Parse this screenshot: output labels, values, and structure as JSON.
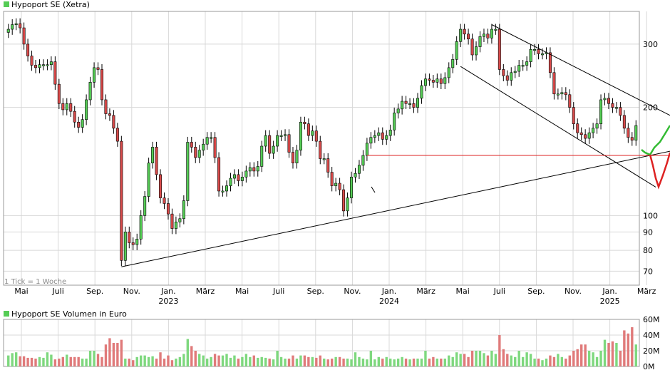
{
  "chart_data": [
    {
      "type": "candlestick",
      "title": "Hypoport SE (Xetra)",
      "legend_color": "#55cc55",
      "note": "1 Tick = 1 Woche",
      "y_scale": "log",
      "ylim": [
        64,
        370
      ],
      "y_ticks": [
        70,
        80,
        90,
        100,
        200,
        300
      ],
      "x_month_labels": [
        "Mai",
        "Juli",
        "Sep.",
        "Nov.",
        "Jan.",
        "März",
        "Mai",
        "Juli",
        "Sep.",
        "Nov.",
        "Jan.",
        "März",
        "Mai",
        "Juli",
        "Sep.",
        "Nov.",
        "Jan.",
        "März"
      ],
      "x_year_labels": [
        "2023",
        "2024",
        "2025"
      ],
      "weekly_close": [
        330,
        340,
        342,
        333,
        300,
        278,
        262,
        258,
        263,
        263,
        263,
        268,
        232,
        205,
        197,
        205,
        195,
        182,
        176,
        185,
        210,
        235,
        258,
        255,
        210,
        192,
        190,
        175,
        161,
        75,
        90,
        84,
        83,
        86,
        100,
        113,
        140,
        155,
        130,
        112,
        108,
        101,
        92,
        96,
        98,
        110,
        160,
        155,
        145,
        152,
        158,
        165,
        165,
        145,
        117,
        117,
        121,
        127,
        130,
        125,
        128,
        133,
        136,
        133,
        137,
        156,
        167,
        149,
        156,
        167,
        167,
        168,
        150,
        140,
        152,
        182,
        180,
        167,
        172,
        161,
        144,
        144,
        132,
        121,
        123,
        118,
        103,
        112,
        128,
        131,
        138,
        147,
        159,
        165,
        167,
        170,
        163,
        167,
        173,
        193,
        198,
        208,
        205,
        205,
        200,
        212,
        230,
        240,
        238,
        235,
        240,
        233,
        242,
        258,
        272,
        305,
        330,
        320,
        310,
        280,
        295,
        315,
        320,
        312,
        330,
        330,
        255,
        245,
        238,
        250,
        252,
        262,
        262,
        268,
        290,
        290,
        282,
        282,
        284,
        250,
        218,
        218,
        220,
        217,
        200,
        180,
        170,
        168,
        164,
        170,
        175,
        180,
        210,
        212,
        205,
        200,
        200,
        190,
        175,
        165,
        162,
        178
      ],
      "volume_unit": "Mio. Euro",
      "volume_title": "Hypoport SE Volumen in Euro",
      "volume_ticks": [
        "0M",
        "20M",
        "40M",
        "60M"
      ],
      "volume_ylim": [
        0,
        60
      ],
      "weekly_volume": [
        14,
        17,
        18,
        13,
        13,
        11,
        11,
        10,
        12,
        11,
        18,
        15,
        9,
        10,
        12,
        15,
        12,
        12,
        12,
        10,
        10,
        20,
        20,
        16,
        12,
        28,
        36,
        30,
        30,
        34,
        10,
        10,
        8,
        12,
        14,
        14,
        12,
        13,
        10,
        18,
        10,
        14,
        8,
        10,
        12,
        16,
        35,
        26,
        20,
        16,
        14,
        10,
        12,
        16,
        14,
        14,
        16,
        11,
        14,
        10,
        12,
        16,
        12,
        14,
        11,
        12,
        11,
        10,
        9,
        20,
        12,
        10,
        10,
        14,
        10,
        14,
        14,
        12,
        12,
        11,
        14,
        10,
        9,
        10,
        12,
        12,
        10,
        10,
        9,
        18,
        12,
        10,
        9,
        20,
        9,
        12,
        10,
        12,
        10,
        9,
        10,
        12,
        10,
        9,
        10,
        10,
        10,
        20,
        10,
        12,
        10,
        10,
        10,
        14,
        12,
        18,
        16,
        16,
        12,
        20,
        20,
        20,
        17,
        14,
        20,
        16,
        40,
        22,
        16,
        14,
        12,
        20,
        12,
        18,
        16,
        10,
        10,
        8,
        10,
        14,
        12,
        16,
        12,
        10,
        14,
        20,
        22,
        28,
        28,
        20,
        18,
        12,
        20,
        34,
        30,
        32,
        30,
        20,
        46,
        42,
        50,
        28
      ]
    }
  ],
  "colors": {
    "up": "#55cc55",
    "down": "#d84a4a",
    "outline": "#000000",
    "grid": "#d8d8d8",
    "hline": "#dd2222",
    "proj_up": "#33bb33",
    "proj_down": "#dd2222"
  }
}
